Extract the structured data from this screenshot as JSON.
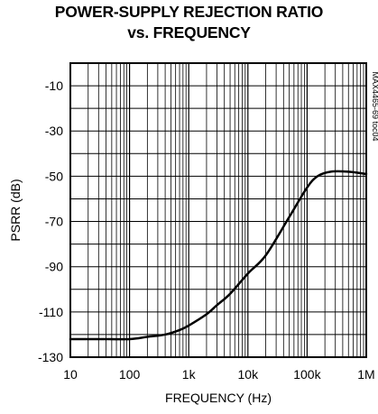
{
  "chart_data": {
    "type": "line",
    "title_line1": "POWER-SUPPLY REJECTION RATIO",
    "title_line2": "vs. FREQUENCY",
    "xlabel": "FREQUENCY (Hz)",
    "ylabel": "PSRR (dB)",
    "x_scale": "log",
    "xlim": [
      10,
      1000000
    ],
    "ylim": [
      -130,
      0
    ],
    "x_ticks": [
      {
        "value": 10,
        "label": "10"
      },
      {
        "value": 100,
        "label": "100"
      },
      {
        "value": 1000,
        "label": "1k"
      },
      {
        "value": 10000,
        "label": "10k"
      },
      {
        "value": 100000,
        "label": "100k"
      },
      {
        "value": 1000000,
        "label": "1M"
      }
    ],
    "y_ticks": [
      {
        "value": -10,
        "label": "-10"
      },
      {
        "value": -30,
        "label": "-30"
      },
      {
        "value": -50,
        "label": "-50"
      },
      {
        "value": -70,
        "label": "-70"
      },
      {
        "value": -90,
        "label": "-90"
      },
      {
        "value": -110,
        "label": "-110"
      },
      {
        "value": -130,
        "label": "-130"
      }
    ],
    "grid": true,
    "part_code": "MAX4465-69 toc04",
    "series": [
      {
        "x": [
          10,
          30,
          100,
          200,
          400,
          700,
          1000,
          2000,
          3000,
          5000,
          10000,
          20000,
          50000,
          100000,
          150000,
          250000,
          500000,
          1000000
        ],
        "values": [
          -122,
          -122,
          -122,
          -121,
          -120,
          -118,
          -116,
          -111,
          -107,
          -102,
          -93,
          -85,
          -68,
          -55,
          -50,
          -48,
          -48,
          -49
        ]
      }
    ]
  }
}
